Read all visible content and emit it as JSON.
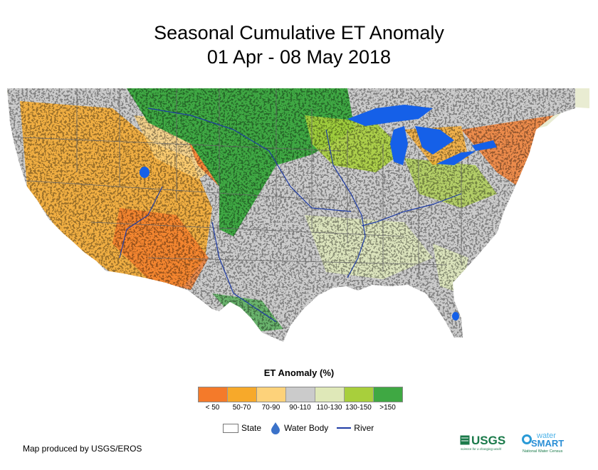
{
  "title": {
    "line1": "Seasonal Cumulative ET Anomaly",
    "line2": "01 Apr - 08 May 2018"
  },
  "legend": {
    "title": "ET Anomaly (%)",
    "classes": [
      {
        "label": "< 50",
        "color": "#f47a2a"
      },
      {
        "label": "50-70",
        "color": "#f7a92a"
      },
      {
        "label": "70-90",
        "color": "#fdd27a"
      },
      {
        "label": "90-110",
        "color": "#cbcbcb"
      },
      {
        "label": "110-130",
        "color": "#dfe8b8"
      },
      {
        "label": "130-150",
        "color": "#a8cf3c"
      },
      {
        "label": ">150",
        "color": "#3fa843"
      }
    ],
    "keys": {
      "state": "State",
      "water": "Water Body",
      "river": "River"
    }
  },
  "map_colors": {
    "lake": "#1560e8",
    "river": "#1e3ba4",
    "border": "#666666",
    "canada": "#e9ecd2"
  },
  "footer": {
    "credit": "Map produced by USGS/EROS"
  },
  "logos": {
    "usgs": "USGS",
    "usgs_tagline": "science for a changing world",
    "water": "water",
    "smart": "SMART",
    "census": "National Water Census"
  }
}
